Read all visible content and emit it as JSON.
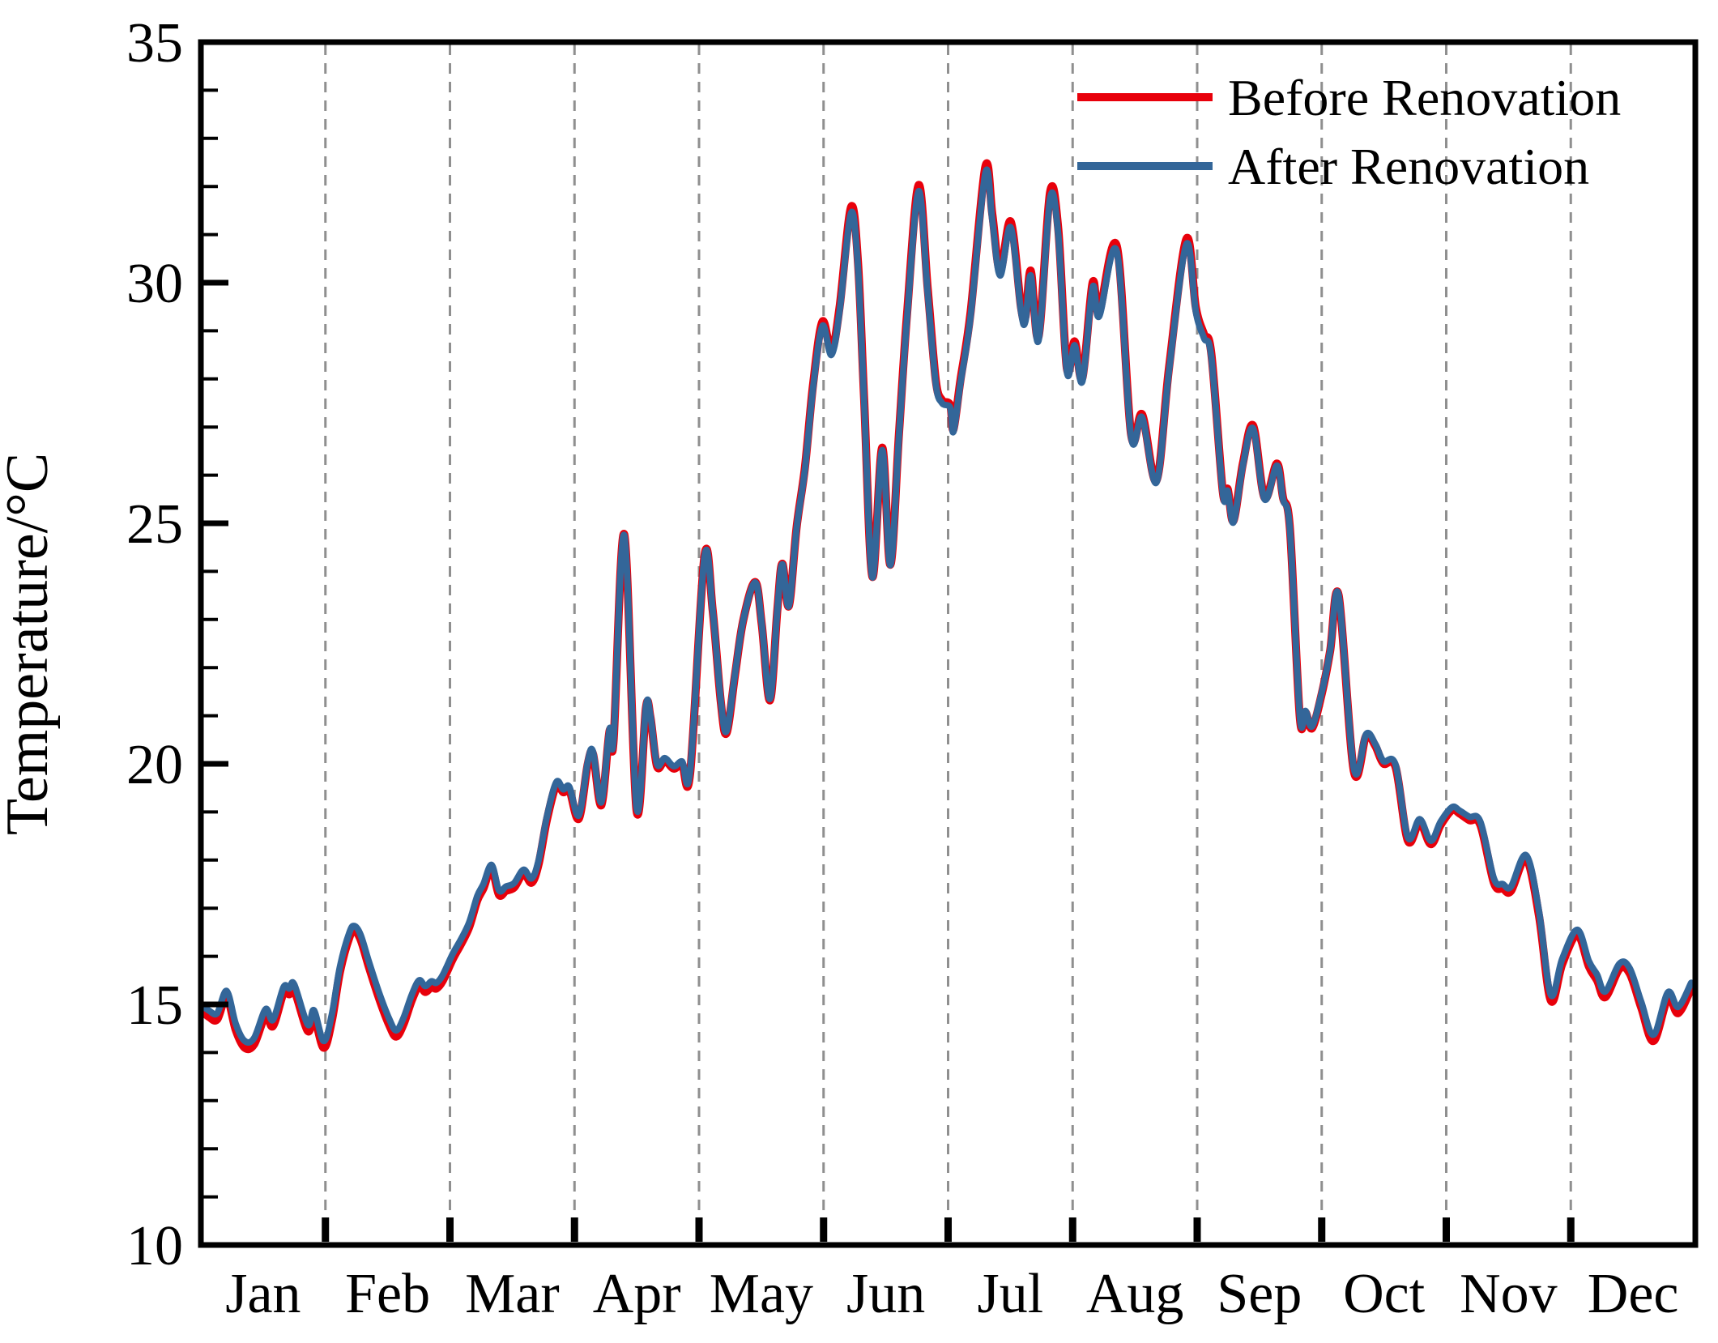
{
  "chart_data": {
    "type": "line",
    "title": "",
    "xlabel": "",
    "ylabel": "Temperature/°C",
    "ylim": [
      10,
      35
    ],
    "yticks_major": [
      10,
      15,
      20,
      25,
      30,
      35
    ],
    "ytick_minor_step": 1,
    "x_range_days": [
      0,
      365
    ],
    "x_categories_months": [
      "Jan",
      "Feb",
      "Mar",
      "Apr",
      "May",
      "Jun",
      "Jul",
      "Aug",
      "Sep",
      "Oct",
      "Nov",
      "Dec"
    ],
    "grid": {
      "vertical_dashed_at_month_boundaries": true,
      "color": "#8f8f8f"
    },
    "colors": {
      "before": "#e8000b",
      "after": "#336699",
      "axis": "#000000",
      "background": "#ffffff"
    },
    "legend": {
      "position": "top-right-inside",
      "entries": [
        {
          "label": "Before Renovation",
          "color": "#e8000b"
        },
        {
          "label": "After Renovation",
          "color": "#336699"
        }
      ]
    },
    "series_note": "points are [day_of_year, before_renovation_temp, after_renovation_temp]",
    "points_day_before_after": [
      [
        0,
        14.88,
        15.0
      ],
      [
        2,
        14.74,
        14.87
      ],
      [
        4,
        14.69,
        14.82
      ],
      [
        6.3,
        15.16,
        15.28
      ],
      [
        8.5,
        14.47,
        14.6
      ],
      [
        10.7,
        14.1,
        14.24
      ],
      [
        13,
        14.17,
        14.3
      ],
      [
        15.8,
        14.77,
        14.9
      ],
      [
        17.6,
        14.55,
        14.68
      ],
      [
        20.2,
        15.24,
        15.36
      ],
      [
        21.6,
        15.21,
        15.33
      ],
      [
        22.8,
        15.3,
        15.42
      ],
      [
        26.1,
        14.45,
        14.58
      ],
      [
        27.6,
        14.75,
        14.88
      ],
      [
        30,
        14.1,
        14.24
      ],
      [
        32,
        14.67,
        14.8
      ],
      [
        34,
        15.69,
        15.8
      ],
      [
        36.3,
        16.4,
        16.5
      ],
      [
        37.5,
        16.53,
        16.63
      ],
      [
        39,
        16.35,
        16.45
      ],
      [
        41,
        15.79,
        15.9
      ],
      [
        43.5,
        15.13,
        15.25
      ],
      [
        46,
        14.57,
        14.7
      ],
      [
        47.7,
        14.33,
        14.46
      ],
      [
        49.5,
        14.59,
        14.72
      ],
      [
        51.5,
        15.08,
        15.2
      ],
      [
        53.3,
        15.39,
        15.5
      ],
      [
        54.8,
        15.26,
        15.38
      ],
      [
        56.3,
        15.36,
        15.48
      ],
      [
        57.5,
        15.33,
        15.45
      ],
      [
        59,
        15.48,
        15.6
      ],
      [
        61.5,
        15.94,
        16.05
      ],
      [
        63.5,
        16.25,
        16.35
      ],
      [
        65.5,
        16.6,
        16.7
      ],
      [
        67.5,
        17.16,
        17.25
      ],
      [
        69,
        17.41,
        17.5
      ],
      [
        71,
        17.82,
        17.9
      ],
      [
        72.8,
        17.28,
        17.37
      ],
      [
        74.5,
        17.36,
        17.45
      ],
      [
        76.5,
        17.43,
        17.52
      ],
      [
        78.8,
        17.72,
        17.8
      ],
      [
        80.8,
        17.53,
        17.62
      ],
      [
        82.5,
        17.92,
        18.0
      ],
      [
        84.5,
        18.83,
        18.9
      ],
      [
        86.8,
        19.56,
        19.62
      ],
      [
        88.5,
        19.41,
        19.47
      ],
      [
        90,
        19.46,
        19.52
      ],
      [
        92.3,
        18.86,
        18.93
      ],
      [
        94.5,
        20.0,
        20.05
      ],
      [
        95.8,
        20.2,
        20.25
      ],
      [
        97.8,
        19.14,
        19.2
      ],
      [
        99.8,
        20.68,
        20.72
      ],
      [
        100.8,
        20.48,
        20.52
      ],
      [
        103.4,
        24.77,
        24.75
      ],
      [
        106.4,
        19.04,
        19.1
      ],
      [
        108.7,
        21.17,
        21.2
      ],
      [
        109.8,
        20.97,
        21.0
      ],
      [
        111.4,
        19.95,
        20.0
      ],
      [
        113.3,
        20.07,
        20.12
      ],
      [
        115.5,
        19.9,
        19.95
      ],
      [
        117.5,
        20.0,
        20.05
      ],
      [
        119.5,
        19.8,
        19.85
      ],
      [
        123,
        24.32,
        24.3
      ],
      [
        125,
        23.2,
        23.2
      ],
      [
        127,
        21.27,
        21.3
      ],
      [
        128.4,
        20.64,
        20.68
      ],
      [
        130.5,
        21.88,
        21.9
      ],
      [
        132.5,
        23.0,
        23.0
      ],
      [
        135.4,
        23.78,
        23.77
      ],
      [
        137,
        22.89,
        22.9
      ],
      [
        139,
        21.32,
        21.35
      ],
      [
        140.8,
        23.2,
        23.2
      ],
      [
        142,
        24.16,
        24.15
      ],
      [
        143.6,
        23.28,
        23.28
      ],
      [
        145.5,
        24.92,
        24.9
      ],
      [
        147.5,
        26.14,
        26.1
      ],
      [
        149.5,
        27.87,
        27.8
      ],
      [
        151.8,
        29.19,
        29.1
      ],
      [
        154,
        28.58,
        28.5
      ],
      [
        156,
        29.49,
        29.4
      ],
      [
        158.8,
        31.57,
        31.45
      ],
      [
        160.5,
        30.41,
        30.3
      ],
      [
        162,
        27.56,
        27.5
      ],
      [
        164,
        23.89,
        23.88
      ],
      [
        166.4,
        26.57,
        26.52
      ],
      [
        168.4,
        24.14,
        24.13
      ],
      [
        170.5,
        26.85,
        26.8
      ],
      [
        172.5,
        29.39,
        29.3
      ],
      [
        175.3,
        32.03,
        31.9
      ],
      [
        177.5,
        29.9,
        29.8
      ],
      [
        179.5,
        27.97,
        27.9
      ],
      [
        181,
        27.56,
        27.5
      ],
      [
        183,
        27.46,
        27.4
      ],
      [
        183.8,
        26.95,
        26.9
      ],
      [
        185.5,
        27.97,
        27.9
      ],
      [
        188,
        29.39,
        29.3
      ],
      [
        191.6,
        32.41,
        32.28
      ],
      [
        193.3,
        31.42,
        31.3
      ],
      [
        195.2,
        30.25,
        30.15
      ],
      [
        197.8,
        31.27,
        31.15
      ],
      [
        200.3,
        29.49,
        29.4
      ],
      [
        201.4,
        29.29,
        29.2
      ],
      [
        202.7,
        30.25,
        30.15
      ],
      [
        204.6,
        28.88,
        28.8
      ],
      [
        207.4,
        31.88,
        31.75
      ],
      [
        209.4,
        31.12,
        31.0
      ],
      [
        211.5,
        28.22,
        28.15
      ],
      [
        213.4,
        28.78,
        28.7
      ],
      [
        215.3,
        28.02,
        27.95
      ],
      [
        217.8,
        30.0,
        29.9
      ],
      [
        219.4,
        29.39,
        29.3
      ],
      [
        223.7,
        30.76,
        30.65
      ],
      [
        227.2,
        26.85,
        26.8
      ],
      [
        229.9,
        27.26,
        27.2
      ],
      [
        233.4,
        25.89,
        25.85
      ],
      [
        236.5,
        28.27,
        28.2
      ],
      [
        240.7,
        30.91,
        30.8
      ],
      [
        243,
        29.49,
        29.4
      ],
      [
        245,
        28.93,
        28.85
      ],
      [
        246.8,
        28.52,
        28.45
      ],
      [
        249.6,
        25.65,
        25.62
      ],
      [
        250.8,
        25.71,
        25.67
      ],
      [
        252.2,
        25.05,
        25.02
      ],
      [
        254.5,
        26.24,
        26.2
      ],
      [
        257,
        27.03,
        26.97
      ],
      [
        259.8,
        25.53,
        25.5
      ],
      [
        262.8,
        26.24,
        26.2
      ],
      [
        264.3,
        25.53,
        25.5
      ],
      [
        266,
        24.87,
        24.85
      ],
      [
        268.4,
        20.97,
        21.0
      ],
      [
        269.8,
        21.07,
        21.1
      ],
      [
        271.4,
        20.74,
        20.78
      ],
      [
        273.8,
        21.47,
        21.5
      ],
      [
        275.8,
        22.34,
        22.35
      ],
      [
        277.9,
        23.5,
        23.5
      ],
      [
        281.6,
        19.85,
        19.9
      ],
      [
        284.6,
        20.58,
        20.62
      ],
      [
        286.8,
        20.38,
        20.42
      ],
      [
        288.8,
        20.01,
        20.06
      ],
      [
        291.8,
        19.93,
        19.98
      ],
      [
        294.8,
        18.4,
        18.47
      ],
      [
        297.7,
        18.78,
        18.85
      ],
      [
        300.4,
        18.33,
        18.4
      ],
      [
        302.8,
        18.73,
        18.8
      ],
      [
        305.6,
        19.04,
        19.1
      ],
      [
        307.4,
        18.97,
        19.03
      ],
      [
        309.8,
        18.83,
        18.9
      ],
      [
        312.5,
        18.73,
        18.8
      ],
      [
        315.8,
        17.53,
        17.62
      ],
      [
        318,
        17.41,
        17.5
      ],
      [
        320,
        17.36,
        17.45
      ],
      [
        323.7,
        18.02,
        18.1
      ],
      [
        326.8,
        16.85,
        16.95
      ],
      [
        329.7,
        15.08,
        15.2
      ],
      [
        332.5,
        15.84,
        15.95
      ],
      [
        336.2,
        16.45,
        16.55
      ],
      [
        339,
        15.79,
        15.9
      ],
      [
        341,
        15.5,
        15.62
      ],
      [
        343,
        15.15,
        15.27
      ],
      [
        346.5,
        15.74,
        15.85
      ],
      [
        349,
        15.64,
        15.75
      ],
      [
        351.8,
        14.93,
        15.05
      ],
      [
        354.8,
        14.24,
        14.37
      ],
      [
        358.3,
        15.13,
        15.25
      ],
      [
        360.8,
        14.82,
        14.95
      ],
      [
        364,
        15.33,
        15.45
      ]
    ]
  }
}
